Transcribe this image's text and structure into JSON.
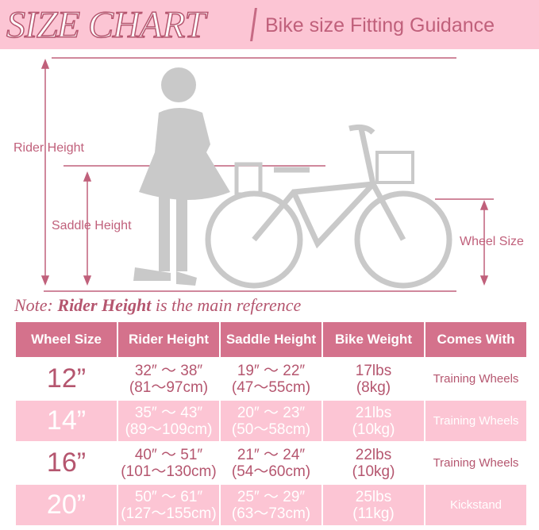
{
  "header": {
    "title": "SIZE CHART",
    "subtitle": "Bike size Fitting Guidance"
  },
  "diagram": {
    "rider_height": "Rider Height",
    "saddle_height": "Saddle Height",
    "wheel_size": "Wheel Size"
  },
  "note": {
    "prefix": "Note: ",
    "emphasis": "Rider Height",
    "suffix": " is the main reference"
  },
  "table": {
    "headers": [
      "Wheel Size",
      "Rider Height",
      "Saddle Height",
      "Bike Weight",
      "Comes With"
    ],
    "rows": [
      {
        "wheel": "12”",
        "rider_in": "32″ ～ 38″",
        "rider_cm": "(81～97cm)",
        "saddle_in": "19″ ～ 22″",
        "saddle_cm": "(47～55cm)",
        "weight_lbs": "17lbs",
        "weight_kg": "(8kg)",
        "comes": "Training Wheels"
      },
      {
        "wheel": "14”",
        "rider_in": "35″ ～ 43″",
        "rider_cm": "(89～109cm)",
        "saddle_in": "20″ ～ 23″",
        "saddle_cm": "(50～58cm)",
        "weight_lbs": "21lbs",
        "weight_kg": "(10kg)",
        "comes": "Training Wheels"
      },
      {
        "wheel": "16”",
        "rider_in": "40″ ～ 51″",
        "rider_cm": "(101～130cm)",
        "saddle_in": "21″ ～ 24″",
        "saddle_cm": "(54～60cm)",
        "weight_lbs": "22lbs",
        "weight_kg": "(10kg)",
        "comes": "Training Wheels"
      },
      {
        "wheel": "20”",
        "rider_in": "50″ ～ 61″",
        "rider_cm": "(127～155cm)",
        "saddle_in": "25″ ～ 29″",
        "saddle_cm": "(63～73cm)",
        "weight_lbs": "25lbs",
        "weight_kg": "(11kg)",
        "comes": "Kickstand"
      }
    ]
  },
  "colors": {
    "accent": "#d4728c",
    "pink": "#fcc5d4",
    "text": "#b5566f"
  }
}
